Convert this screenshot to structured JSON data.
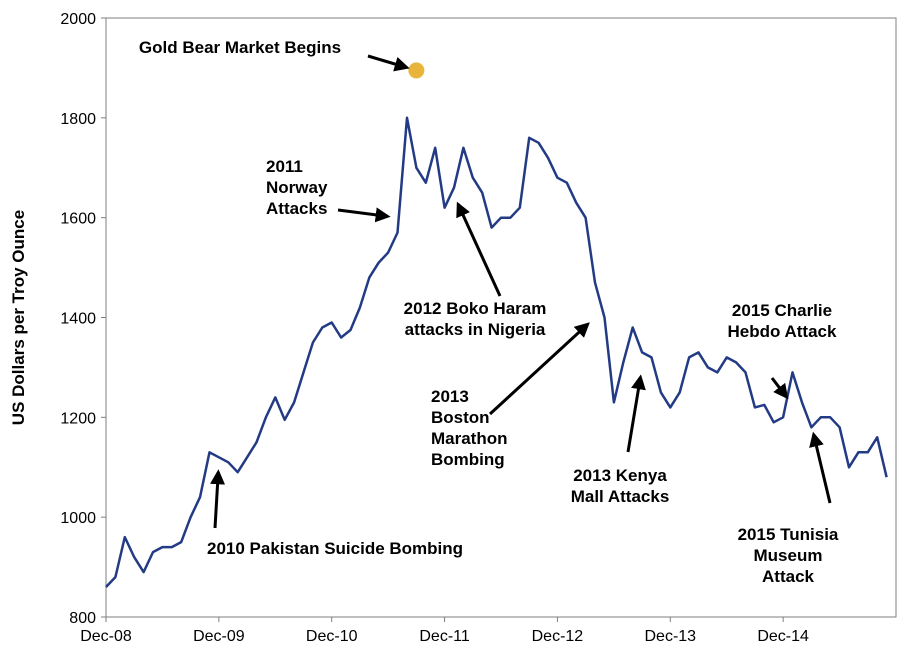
{
  "chart_data": {
    "type": "line",
    "xlabel": "",
    "ylabel": "US Dollars per Troy Ounce",
    "ylim": [
      800,
      2000
    ],
    "yticks": [
      800,
      1000,
      1200,
      1400,
      1600,
      1800,
      2000
    ],
    "xticks": [
      "Dec-08",
      "Dec-09",
      "Dec-10",
      "Dec-11",
      "Dec-12",
      "Dec-13",
      "Dec-14"
    ],
    "grid": false,
    "legend": "none",
    "line_color": "#233b84",
    "marker_color": "#e8b53a",
    "series": [
      {
        "name": "",
        "points": [
          [
            "2008-12",
            860
          ],
          [
            "2009-01",
            880
          ],
          [
            "2009-02",
            960
          ],
          [
            "2009-03",
            920
          ],
          [
            "2009-04",
            890
          ],
          [
            "2009-05",
            930
          ],
          [
            "2009-06",
            940
          ],
          [
            "2009-07",
            940
          ],
          [
            "2009-08",
            950
          ],
          [
            "2009-09",
            1000
          ],
          [
            "2009-10",
            1040
          ],
          [
            "2009-11",
            1130
          ],
          [
            "2009-12",
            1120
          ],
          [
            "2010-01",
            1110
          ],
          [
            "2010-02",
            1090
          ],
          [
            "2010-03",
            1120
          ],
          [
            "2010-04",
            1150
          ],
          [
            "2010-05",
            1200
          ],
          [
            "2010-06",
            1240
          ],
          [
            "2010-07",
            1195
          ],
          [
            "2010-08",
            1230
          ],
          [
            "2010-09",
            1290
          ],
          [
            "2010-10",
            1350
          ],
          [
            "2010-11",
            1380
          ],
          [
            "2010-12",
            1390
          ],
          [
            "2011-01",
            1360
          ],
          [
            "2011-02",
            1375
          ],
          [
            "2011-03",
            1420
          ],
          [
            "2011-04",
            1480
          ],
          [
            "2011-05",
            1510
          ],
          [
            "2011-06",
            1530
          ],
          [
            "2011-07",
            1570
          ],
          [
            "2011-08",
            1800
          ],
          [
            "2011-09",
            1700
          ],
          [
            "2011-10",
            1670
          ],
          [
            "2011-11",
            1740
          ],
          [
            "2011-12",
            1620
          ],
          [
            "2012-01",
            1660
          ],
          [
            "2012-02",
            1740
          ],
          [
            "2012-03",
            1680
          ],
          [
            "2012-04",
            1650
          ],
          [
            "2012-05",
            1580
          ],
          [
            "2012-06",
            1600
          ],
          [
            "2012-07",
            1600
          ],
          [
            "2012-08",
            1620
          ],
          [
            "2012-09",
            1760
          ],
          [
            "2012-10",
            1750
          ],
          [
            "2012-11",
            1720
          ],
          [
            "2012-12",
            1680
          ],
          [
            "2013-01",
            1670
          ],
          [
            "2013-02",
            1630
          ],
          [
            "2013-03",
            1600
          ],
          [
            "2013-04",
            1470
          ],
          [
            "2013-05",
            1400
          ],
          [
            "2013-06",
            1230
          ],
          [
            "2013-07",
            1310
          ],
          [
            "2013-08",
            1380
          ],
          [
            "2013-09",
            1330
          ],
          [
            "2013-10",
            1320
          ],
          [
            "2013-11",
            1250
          ],
          [
            "2013-12",
            1220
          ],
          [
            "2014-01",
            1250
          ],
          [
            "2014-02",
            1320
          ],
          [
            "2014-03",
            1330
          ],
          [
            "2014-04",
            1300
          ],
          [
            "2014-05",
            1290
          ],
          [
            "2014-06",
            1320
          ],
          [
            "2014-07",
            1310
          ],
          [
            "2014-08",
            1290
          ],
          [
            "2014-09",
            1220
          ],
          [
            "2014-10",
            1225
          ],
          [
            "2014-11",
            1190
          ],
          [
            "2014-12",
            1200
          ],
          [
            "2015-01",
            1290
          ],
          [
            "2015-02",
            1230
          ],
          [
            "2015-03",
            1180
          ],
          [
            "2015-04",
            1200
          ],
          [
            "2015-05",
            1200
          ],
          [
            "2015-06",
            1180
          ],
          [
            "2015-07",
            1100
          ],
          [
            "2015-08",
            1130
          ],
          [
            "2015-09",
            1130
          ],
          [
            "2015-10",
            1160
          ],
          [
            "2015-11",
            1080
          ]
        ]
      }
    ],
    "marker": {
      "x": "2011-09",
      "y": 1895
    },
    "annotations": [
      {
        "lines": [
          "Gold Bear Market Begins"
        ],
        "target": {
          "x": "2011-09",
          "y": 1895
        }
      },
      {
        "lines": [
          "2011",
          "Norway",
          "Attacks"
        ],
        "target": {
          "x": "2011-07",
          "y": 1600
        }
      },
      {
        "lines": [
          "2012 Boko Haram",
          "attacks in Nigeria"
        ],
        "target": {
          "x": "2012-01",
          "y": 1645
        }
      },
      {
        "lines": [
          "2013",
          "Boston",
          "Marathon",
          "Bombing"
        ],
        "target": {
          "x": "2013-04",
          "y": 1400
        }
      },
      {
        "lines": [
          "2013 Kenya",
          "Mall Attacks"
        ],
        "target": {
          "x": "2013-09",
          "y": 1300
        }
      },
      {
        "lines": [
          "2015 Charlie",
          "Hebdo Attack"
        ],
        "target": {
          "x": "2015-01",
          "y": 1225
        }
      },
      {
        "lines": [
          "2015 Tunisia",
          "Museum",
          "Attack"
        ],
        "target": {
          "x": "2015-03",
          "y": 1185
        }
      },
      {
        "lines": [
          "2010 Pakistan Suicide Bombing"
        ],
        "target": {
          "x": "2009-12",
          "y": 1110
        }
      }
    ]
  }
}
